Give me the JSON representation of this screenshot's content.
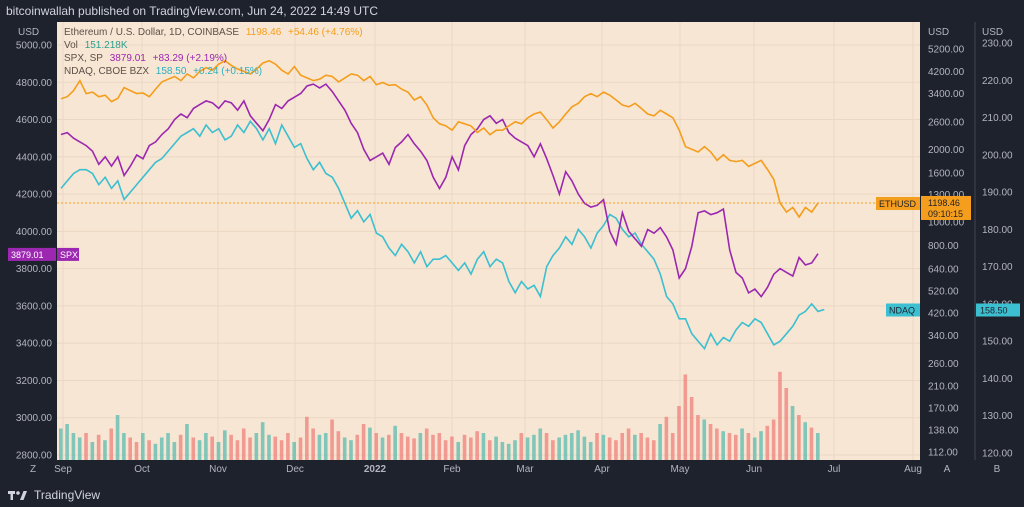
{
  "header": {
    "text": "bitcoinwallah published on TradingView.com, Jun 24, 2022 14:49 UTC"
  },
  "footer": {
    "brand": "TradingView"
  },
  "colors": {
    "plot_bg": "#f7e6d3",
    "eth": "#f59d1c",
    "spx": "#9c27b0",
    "ndaq": "#3cbfd0",
    "vol_up": "#6cc0b4",
    "vol_down": "#f08c86",
    "grid": "#ead8c4",
    "dark": "#1e222d"
  },
  "axis_labels": {
    "left_unit": "USD",
    "right_unit_1": "USD",
    "right_unit_2": "USD",
    "btn_z": "Z",
    "btn_a": "A",
    "btn_b": "B"
  },
  "legend": {
    "eth": {
      "name": "Ethereum / U.S. Dollar, 1D, COINBASE",
      "value": "1198.46",
      "change": "+54.46 (+4.76%)"
    },
    "vol": {
      "name": "Vol",
      "value": "151.218K"
    },
    "spx": {
      "name": "SPX, SP",
      "value": "3879.01",
      "change": "+83.29 (+2.19%)"
    },
    "ndaq": {
      "name": "NDAQ, CBOE BZX",
      "value": "158.50",
      "change": "+0.24 (+0.15%)"
    }
  },
  "chart_data": {
    "type": "line",
    "title": "Ethereum / U.S. Dollar, 1D, COINBASE",
    "x_ticks": [
      "Sep",
      "Oct",
      "Nov",
      "Dec",
      "2022",
      "Feb",
      "Mar",
      "Apr",
      "May",
      "Jun",
      "Jul",
      "Aug"
    ],
    "left_axis": {
      "unit": "USD",
      "series": "SPX",
      "ticks": [
        5000,
        4800,
        4600,
        4400,
        4200,
        4000,
        3800,
        3600,
        3400,
        3200,
        3000,
        2800
      ],
      "tick_labels": [
        "5000.00",
        "4800.00",
        "4600.00",
        "4400.00",
        "4200.00",
        "4000.00",
        "3800.00",
        "3600.00",
        "3400.00",
        "3200.00",
        "3000.00",
        "2800.00"
      ]
    },
    "right_axis_1": {
      "unit": "USD",
      "series": "ETHUSD (log)",
      "tick_labels": [
        "5200.00",
        "4200.00",
        "3400.00",
        "2600.00",
        "2000.00",
        "1600.00",
        "1300.00",
        "1000.00",
        "800.00",
        "640.00",
        "520.00",
        "420.00",
        "340.00",
        "260.00",
        "210.00",
        "170.00",
        "138.00",
        "112.00"
      ]
    },
    "right_axis_2": {
      "unit": "USD",
      "series": "NDAQ",
      "ticks": [
        230,
        220,
        210,
        200,
        190,
        180,
        170,
        160,
        150,
        140,
        130,
        120
      ],
      "tick_labels": [
        "230.00",
        "220.00",
        "210.00",
        "200.00",
        "190.00",
        "180.00",
        "170.00",
        "160.00",
        "150.00",
        "140.00",
        "130.00",
        "120.00"
      ]
    },
    "price_labels": {
      "eth": {
        "label": "ETHUSD",
        "value": "1198.46",
        "countdown": "09:10:15"
      },
      "spx": {
        "label": "SPX",
        "value": "3879.01"
      },
      "ndaq": {
        "label": "NDAQ",
        "value": "158.50"
      }
    },
    "series": [
      {
        "name": "ETHUSD",
        "axis": "right1",
        "values": [
          3240,
          3300,
          3500,
          3850,
          3400,
          3450,
          3300,
          3350,
          3150,
          3250,
          3600,
          3500,
          3400,
          3420,
          3300,
          3550,
          3800,
          3900,
          4000,
          3850,
          4100,
          3950,
          4200,
          4350,
          4250,
          4500,
          4650,
          4450,
          4300,
          4200,
          4100,
          4300,
          4550,
          4650,
          4500,
          4250,
          4100,
          4400,
          4050,
          3950,
          3850,
          3900,
          4050,
          4000,
          3800,
          3950,
          4100,
          4050,
          3850,
          4000,
          3700,
          3780,
          3680,
          3700,
          3550,
          3450,
          3200,
          3300,
          3050,
          2700,
          2550,
          2500,
          2400,
          2600,
          2550,
          2500,
          2350,
          2450,
          2300,
          2400,
          2400,
          2500,
          2600,
          2550,
          2700,
          2800,
          2850,
          2650,
          2450,
          2600,
          2800,
          3000,
          3100,
          3300,
          3400,
          3300,
          3450,
          3350,
          3200,
          3050,
          3000,
          3100,
          2950,
          2800,
          2750,
          2900,
          2800,
          2700,
          2400,
          2050,
          2000,
          1950,
          2050,
          1950,
          1800,
          1900,
          1800,
          1780,
          1800,
          1700,
          1750,
          1800,
          1650,
          1500,
          1200,
          1100,
          1150,
          1050,
          1150,
          1100,
          1200
        ]
      },
      {
        "name": "SPX",
        "axis": "left",
        "values": [
          4520,
          4530,
          4500,
          4480,
          4460,
          4430,
          4360,
          4400,
          4350,
          4400,
          4300,
          4350,
          4410,
          4390,
          4460,
          4480,
          4520,
          4550,
          4600,
          4630,
          4610,
          4660,
          4680,
          4700,
          4690,
          4660,
          4700,
          4690,
          4650,
          4700,
          4620,
          4580,
          4540,
          4600,
          4680,
          4660,
          4700,
          4720,
          4740,
          4780,
          4790,
          4770,
          4790,
          4750,
          4700,
          4650,
          4580,
          4530,
          4440,
          4380,
          4400,
          4420,
          4360,
          4450,
          4480,
          4520,
          4470,
          4430,
          4380,
          4290,
          4230,
          4290,
          4400,
          4330,
          4460,
          4520,
          4550,
          4600,
          4620,
          4580,
          4600,
          4530,
          4500,
          4480,
          4460,
          4400,
          4470,
          4390,
          4300,
          4200,
          4320,
          4270,
          4200,
          4150,
          4130,
          4140,
          4170,
          4000,
          3930,
          4100,
          4000,
          3960,
          3920,
          4010,
          3990,
          4020,
          3970,
          3900,
          3750,
          3800,
          3920,
          4100,
          4110,
          4090,
          4100,
          4120,
          3900,
          3780,
          3750,
          3670,
          3690,
          3650,
          3700,
          3770,
          3800,
          3780,
          3760,
          3860,
          3820,
          3830,
          3880
        ]
      },
      {
        "name": "NDAQ",
        "axis": "right2",
        "values": [
          191,
          193,
          195,
          196,
          196,
          195,
          192,
          194,
          191,
          193,
          188,
          190,
          192,
          194,
          196,
          198,
          199,
          201,
          203,
          205,
          206,
          207,
          205,
          208,
          206,
          207,
          204,
          205,
          208,
          206,
          209,
          207,
          204,
          207,
          203,
          208,
          205,
          202,
          203,
          199,
          196,
          198,
          195,
          194,
          191,
          187,
          183,
          185,
          182,
          184,
          179,
          178,
          175,
          173,
          176,
          174,
          171,
          174,
          170,
          172,
          172,
          173,
          171,
          169,
          171,
          168,
          172,
          174,
          170,
          172,
          171,
          166,
          163,
          166,
          164,
          165,
          162,
          170,
          173,
          175,
          178,
          176,
          180,
          178,
          175,
          179,
          181,
          184,
          183,
          180,
          178,
          179,
          176,
          174,
          172,
          168,
          162,
          160,
          156,
          156,
          152,
          150,
          148,
          152,
          149,
          151,
          150,
          153,
          155,
          154,
          156,
          155,
          152,
          149,
          150,
          152,
          154,
          157,
          158,
          160,
          158,
          158.5
        ]
      },
      {
        "name": "Vol",
        "axis": "volume",
        "values": [
          0.35,
          0.4,
          0.3,
          0.25,
          0.3,
          0.2,
          0.28,
          0.22,
          0.35,
          0.5,
          0.3,
          0.25,
          0.2,
          0.3,
          0.22,
          0.18,
          0.25,
          0.3,
          0.2,
          0.28,
          0.4,
          0.25,
          0.22,
          0.3,
          0.26,
          0.2,
          0.33,
          0.28,
          0.22,
          0.35,
          0.25,
          0.3,
          0.42,
          0.28,
          0.26,
          0.22,
          0.3,
          0.2,
          0.25,
          0.48,
          0.35,
          0.28,
          0.3,
          0.45,
          0.32,
          0.25,
          0.22,
          0.28,
          0.4,
          0.36,
          0.3,
          0.25,
          0.28,
          0.38,
          0.3,
          0.26,
          0.24,
          0.3,
          0.35,
          0.28,
          0.3,
          0.22,
          0.26,
          0.2,
          0.28,
          0.25,
          0.32,
          0.3,
          0.22,
          0.26,
          0.2,
          0.18,
          0.22,
          0.3,
          0.25,
          0.28,
          0.35,
          0.3,
          0.22,
          0.25,
          0.28,
          0.3,
          0.33,
          0.26,
          0.2,
          0.3,
          0.28,
          0.25,
          0.22,
          0.3,
          0.35,
          0.28,
          0.3,
          0.25,
          0.22,
          0.4,
          0.48,
          0.3,
          0.6,
          0.95,
          0.7,
          0.5,
          0.45,
          0.4,
          0.35,
          0.32,
          0.3,
          0.28,
          0.35,
          0.3,
          0.25,
          0.32,
          0.38,
          0.45,
          0.98,
          0.8,
          0.6,
          0.5,
          0.42,
          0.36,
          0.3
        ]
      }
    ]
  }
}
